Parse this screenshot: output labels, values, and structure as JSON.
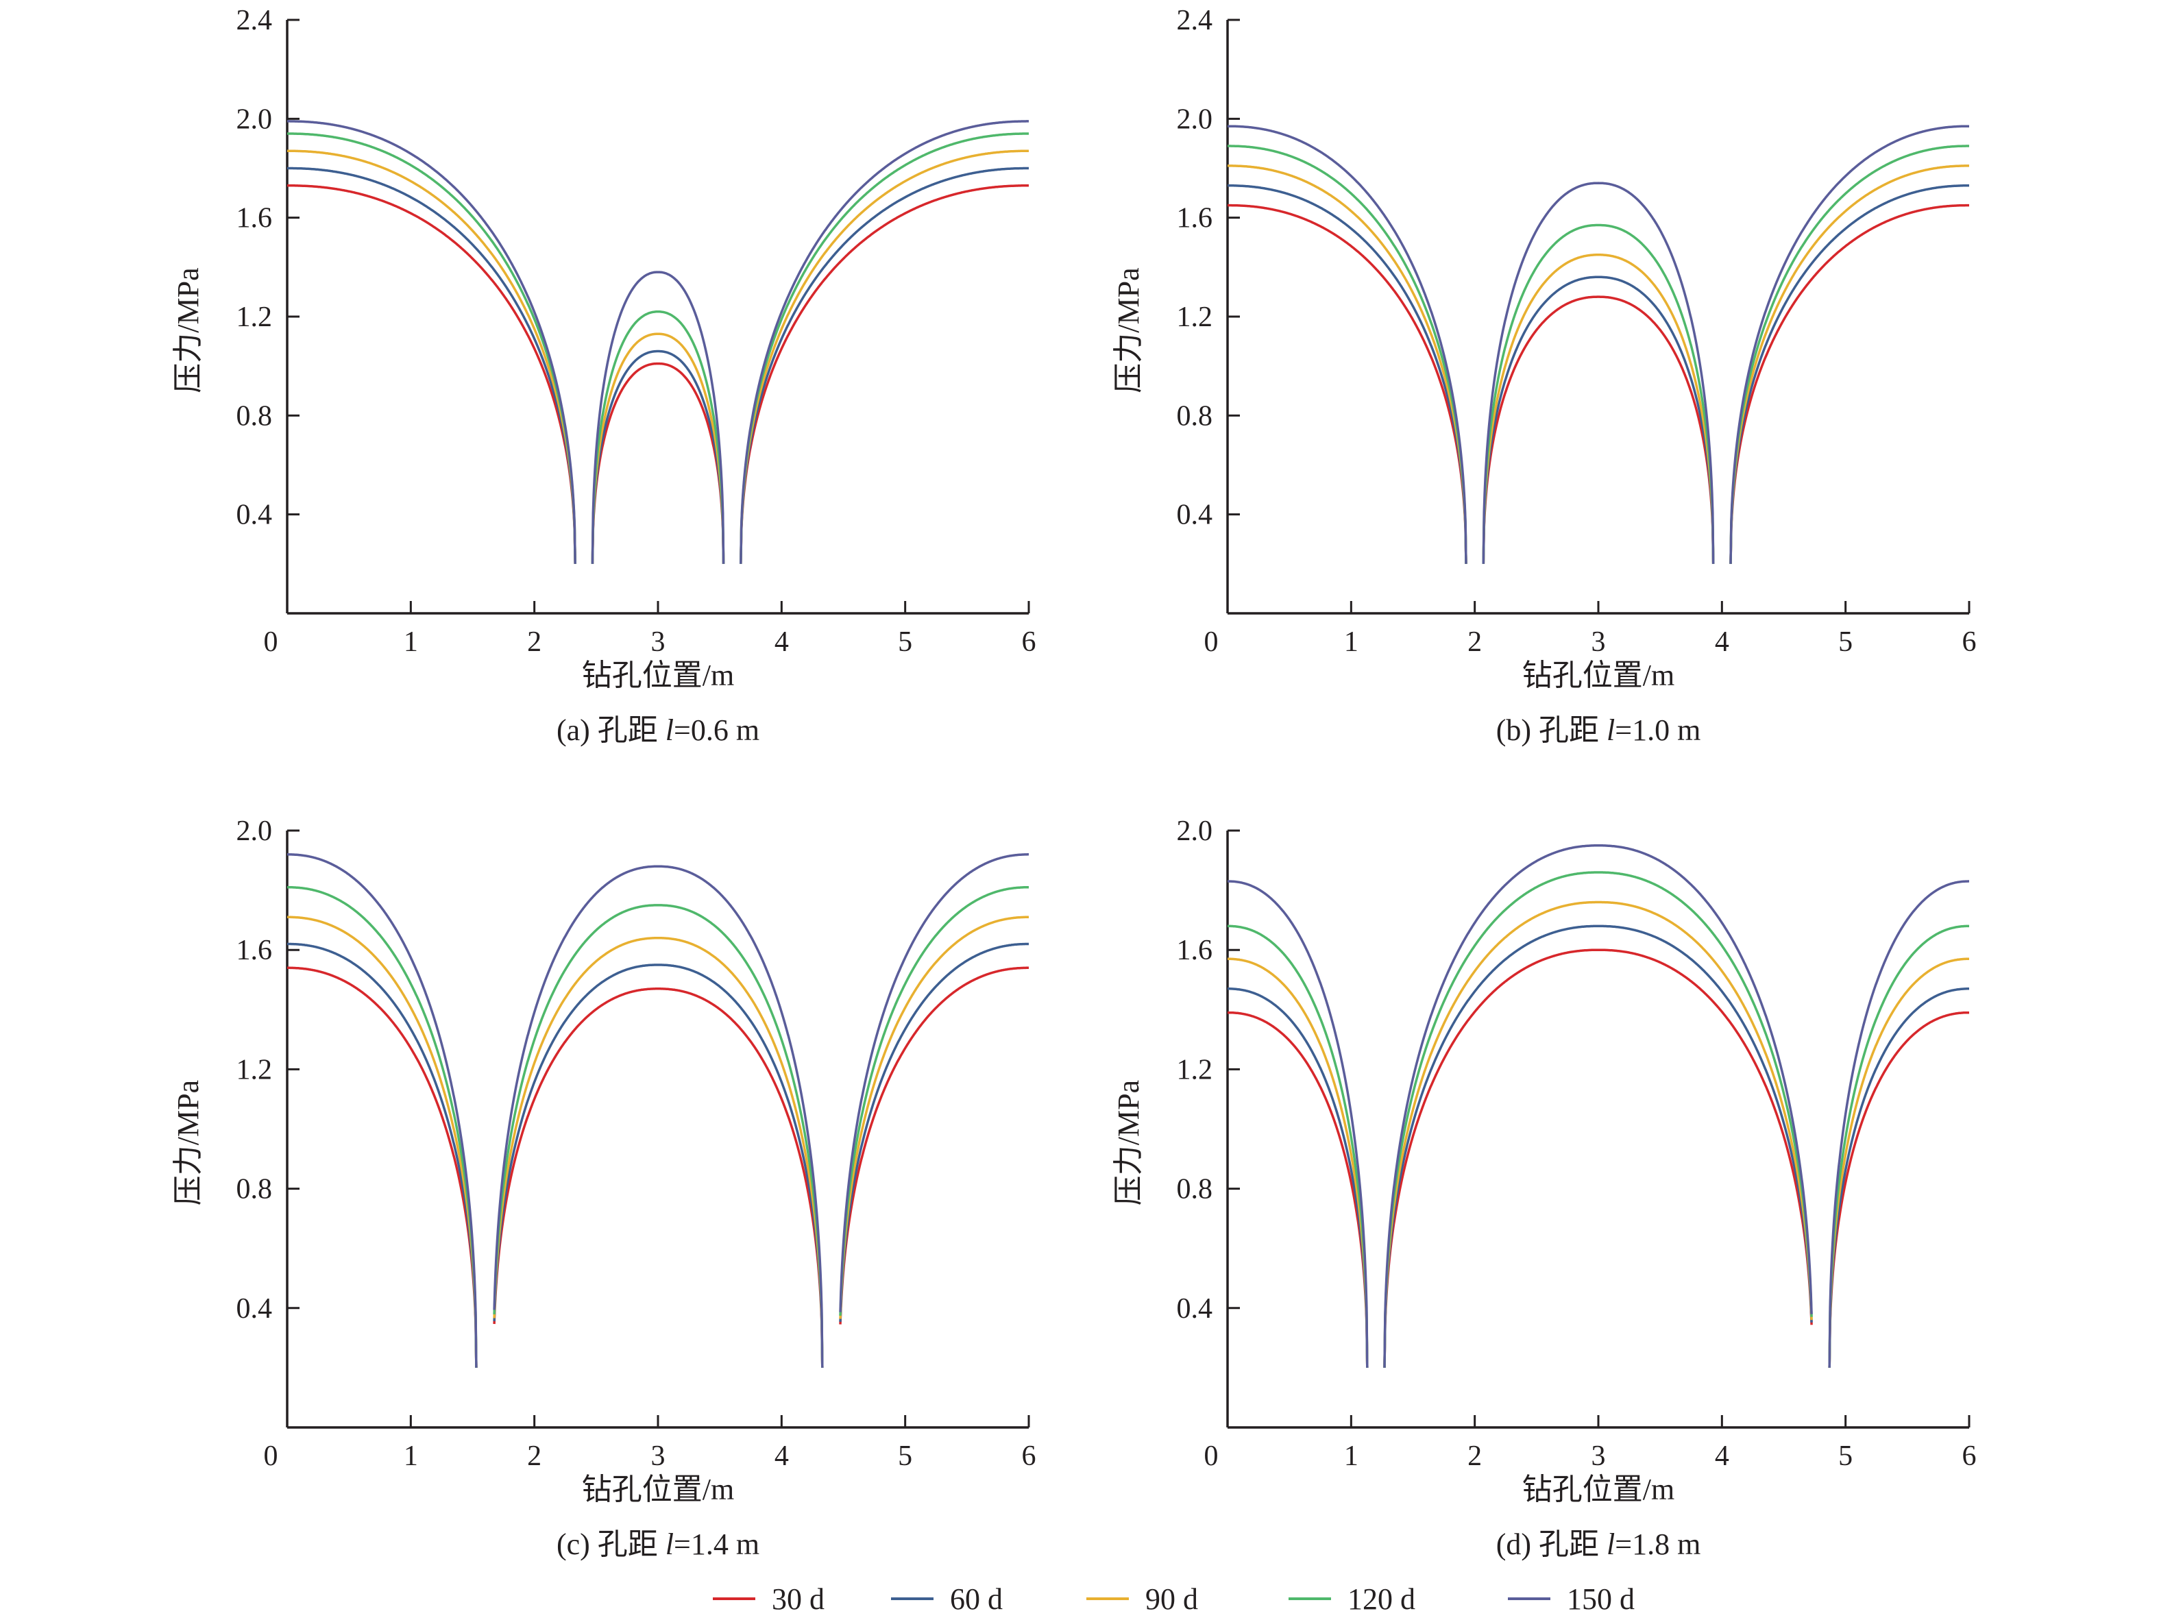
{
  "legend": [
    {
      "label": "30 d",
      "color": "#d7272b"
    },
    {
      "label": "60 d",
      "color": "#3d5f91"
    },
    {
      "label": "90 d",
      "color": "#e8b030"
    },
    {
      "label": "120 d",
      "color": "#4fb86b"
    },
    {
      "label": "150 d",
      "color": "#5a5d9a"
    }
  ],
  "chart_data": [
    {
      "type": "line",
      "panel": "a",
      "caption": "(a) 孔距 l=0.6 m",
      "caption_parts": {
        "prefix": "(a) 孔距 ",
        "var": "l",
        "suffix": "=0.6 m"
      },
      "xlabel": "钻孔位置/m",
      "ylabel": "压力/MPa",
      "xlim": [
        0,
        6
      ],
      "ylim": [
        0,
        2.4
      ],
      "xticks": [
        "0",
        "1",
        "2",
        "3",
        "4",
        "5",
        "6"
      ],
      "yticks": [
        "0.4",
        "0.8",
        "1.2",
        "1.6",
        "2.0",
        "2.4"
      ],
      "hole_spacing": 0.6,
      "hole_centers": [
        2.4,
        3.6
      ],
      "hole_radius": 0.07,
      "min_value": 0.2,
      "series": [
        {
          "name": "30 d",
          "edge_value": 1.73,
          "center_value": 1.01
        },
        {
          "name": "60 d",
          "edge_value": 1.8,
          "center_value": 1.06
        },
        {
          "name": "90 d",
          "edge_value": 1.87,
          "center_value": 1.13
        },
        {
          "name": "120 d",
          "edge_value": 1.94,
          "center_value": 1.22
        },
        {
          "name": "150 d",
          "edge_value": 1.99,
          "center_value": 1.38
        }
      ]
    },
    {
      "type": "line",
      "panel": "b",
      "caption": "(b) 孔距 l=1.0 m",
      "caption_parts": {
        "prefix": "(b) 孔距 ",
        "var": "l",
        "suffix": "=1.0 m"
      },
      "xlabel": "钻孔位置/m",
      "ylabel": "压力/MPa",
      "xlim": [
        0,
        6
      ],
      "ylim": [
        0,
        2.4
      ],
      "xticks": [
        "0",
        "1",
        "2",
        "3",
        "4",
        "5",
        "6"
      ],
      "yticks": [
        "0.4",
        "0.8",
        "1.2",
        "1.6",
        "2.0",
        "2.4"
      ],
      "hole_spacing": 1.0,
      "hole_centers": [
        2.0,
        4.0
      ],
      "hole_radius": 0.07,
      "min_value": 0.2,
      "series": [
        {
          "name": "30 d",
          "edge_value": 1.65,
          "center_value": 1.28
        },
        {
          "name": "60 d",
          "edge_value": 1.73,
          "center_value": 1.36
        },
        {
          "name": "90 d",
          "edge_value": 1.81,
          "center_value": 1.45
        },
        {
          "name": "120 d",
          "edge_value": 1.89,
          "center_value": 1.57
        },
        {
          "name": "150 d",
          "edge_value": 1.97,
          "center_value": 1.74
        }
      ]
    },
    {
      "type": "line",
      "panel": "c",
      "caption": "(c) 孔距 l=1.4 m",
      "caption_parts": {
        "prefix": "(c) 孔距 ",
        "var": "l",
        "suffix": "=1.4 m"
      },
      "xlabel": "钻孔位置/m",
      "ylabel": "压力/MPa",
      "xlim": [
        0,
        6
      ],
      "ylim": [
        0,
        2.0
      ],
      "xticks": [
        "0",
        "1",
        "2",
        "3",
        "4",
        "5",
        "6"
      ],
      "yticks": [
        "0.4",
        "0.8",
        "1.2",
        "1.6",
        "2.0"
      ],
      "hole_spacing": 1.4,
      "hole_centers": [
        1.6,
        4.4
      ],
      "hole_radius": 0.07,
      "min_value": 0.2,
      "series": [
        {
          "name": "30 d",
          "edge_value": 1.54,
          "center_value": 1.47
        },
        {
          "name": "60 d",
          "edge_value": 1.62,
          "center_value": 1.55
        },
        {
          "name": "90 d",
          "edge_value": 1.71,
          "center_value": 1.64
        },
        {
          "name": "120 d",
          "edge_value": 1.81,
          "center_value": 1.75
        },
        {
          "name": "150 d",
          "edge_value": 1.92,
          "center_value": 1.88
        }
      ]
    },
    {
      "type": "line",
      "panel": "d",
      "caption": "(d) 孔距 l=1.8 m",
      "caption_parts": {
        "prefix": "(d) 孔距 ",
        "var": "l",
        "suffix": "=1.8 m"
      },
      "xlabel": "钻孔位置/m",
      "ylabel": "压力/MPa",
      "xlim": [
        0,
        6
      ],
      "ylim": [
        0,
        2.0
      ],
      "xticks": [
        "0",
        "1",
        "2",
        "3",
        "4",
        "5",
        "6"
      ],
      "yticks": [
        "0.4",
        "0.8",
        "1.2",
        "1.6",
        "2.0"
      ],
      "hole_spacing": 1.8,
      "hole_centers": [
        1.2,
        4.8
      ],
      "hole_radius": 0.07,
      "min_value": 0.2,
      "series": [
        {
          "name": "30 d",
          "edge_value": 1.39,
          "center_value": 1.6
        },
        {
          "name": "60 d",
          "edge_value": 1.47,
          "center_value": 1.68
        },
        {
          "name": "90 d",
          "edge_value": 1.57,
          "center_value": 1.76
        },
        {
          "name": "120 d",
          "edge_value": 1.68,
          "center_value": 1.86
        },
        {
          "name": "150 d",
          "edge_value": 1.83,
          "center_value": 1.95
        }
      ]
    }
  ]
}
